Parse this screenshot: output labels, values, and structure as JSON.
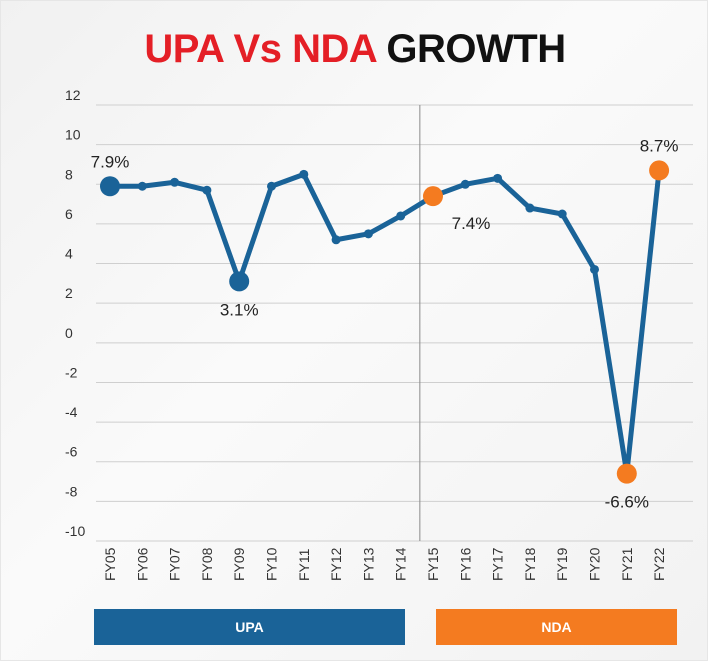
{
  "title": {
    "part1": "UPA",
    "part2": "Vs",
    "part3": "NDA",
    "part4": "GROWTH"
  },
  "bands": {
    "upa": "UPA",
    "nda": "NDA"
  },
  "colors": {
    "line": "#1a6398",
    "upa": "#1a6398",
    "nda": "#f47b20",
    "title_red": "#e41f26"
  },
  "chart_data": {
    "type": "line",
    "title": "UPA Vs NDA GROWTH",
    "xlabel": "",
    "ylabel": "",
    "ylim": [
      -10,
      12
    ],
    "yticks": [
      12,
      10,
      8,
      6,
      4,
      2,
      0,
      -2,
      -4,
      -6,
      -8,
      -10
    ],
    "grid": true,
    "categories": [
      "FY05",
      "FY06",
      "FY07",
      "FY08",
      "FY09",
      "FY10",
      "FY11",
      "FY12",
      "FY13",
      "FY14",
      "FY15",
      "FY16",
      "FY17",
      "FY18",
      "FY19",
      "FY20",
      "FY21",
      "FY22"
    ],
    "values": [
      7.9,
      7.9,
      8.1,
      7.7,
      3.1,
      7.9,
      8.5,
      5.2,
      5.5,
      6.4,
      7.4,
      8.0,
      8.3,
      6.8,
      6.5,
      3.7,
      -6.6,
      8.7
    ],
    "divider_after": "FY14",
    "highlights": [
      {
        "category": "FY05",
        "label": "7.9%",
        "color": "#1a6398",
        "pos": "above"
      },
      {
        "category": "FY09",
        "label": "3.1%",
        "color": "#1a6398",
        "pos": "below"
      },
      {
        "category": "FY15",
        "label": "7.4%",
        "color": "#f47b20",
        "pos": "below-right"
      },
      {
        "category": "FY21",
        "label": "-6.6%",
        "color": "#f47b20",
        "pos": "below"
      },
      {
        "category": "FY22",
        "label": "8.7%",
        "color": "#f47b20",
        "pos": "above"
      }
    ]
  }
}
